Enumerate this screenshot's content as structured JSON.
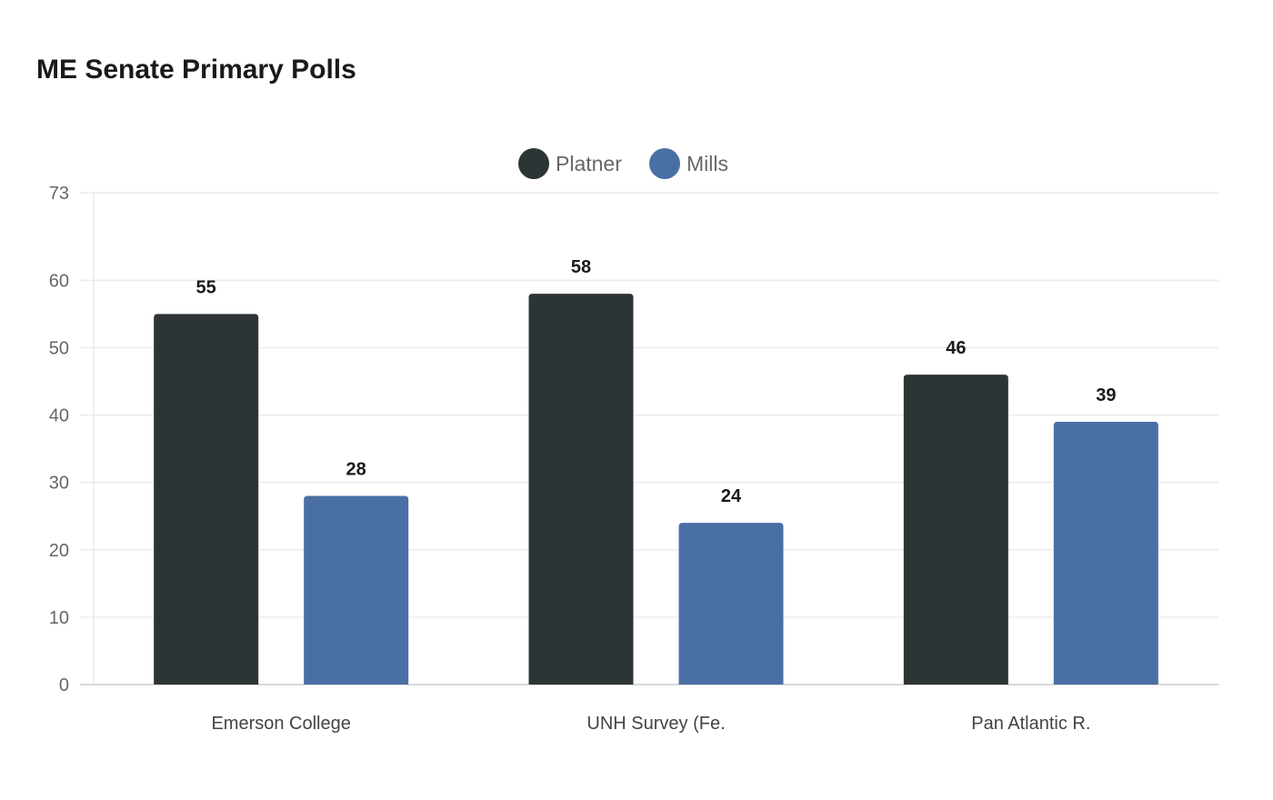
{
  "chart_data": {
    "type": "bar",
    "title": "ME Senate Primary Polls",
    "categories": [
      "Emerson College",
      "UNH Survey (Fe.",
      "Pan Atlantic R."
    ],
    "series": [
      {
        "name": "Platner",
        "color": "#2d3436",
        "values": [
          55,
          58,
          46
        ]
      },
      {
        "name": "Mills",
        "color": "#4a6fa5",
        "values": [
          28,
          24,
          39
        ]
      }
    ],
    "xlabel": "",
    "ylabel": "",
    "ylim": [
      0,
      73
    ],
    "yticks": [
      0,
      10,
      20,
      30,
      40,
      50,
      60,
      73
    ],
    "grid": true,
    "legend": "top-center",
    "data_labels": true
  }
}
